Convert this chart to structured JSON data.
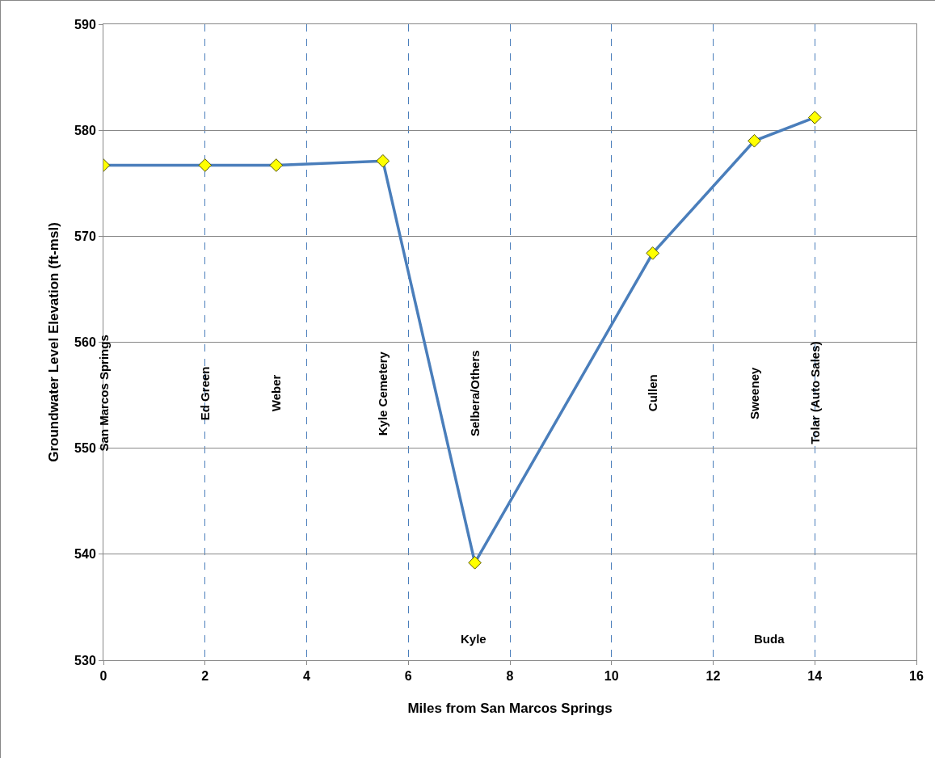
{
  "chart_data": {
    "type": "line",
    "xlabel": "Miles from San Marcos Springs",
    "ylabel": "Groundwater Level Elevation (ft-msl)",
    "x": [
      0,
      2.0,
      3.4,
      5.5,
      7.31,
      10.81,
      12.81,
      14.0
    ],
    "series": [
      {
        "color": "#4a7ebb",
        "values": [
          576.7,
          576.7,
          576.7,
          577.1,
          539.2,
          568.4,
          579.0,
          581.2
        ]
      }
    ],
    "marker": "diamond",
    "line_style": "solid",
    "grid": true,
    "xlim": [
      0,
      16
    ],
    "xticks": [
      0,
      2,
      4,
      6,
      8,
      10,
      12,
      14,
      16
    ],
    "ylim": [
      530,
      590
    ],
    "yticks": [
      530,
      540,
      550,
      560,
      570,
      580,
      590
    ],
    "annotations": [
      "San Marcos Springs",
      "Ed Green",
      "Weber",
      "Kyle Cemetery",
      "Selbera/Others",
      "Cullen",
      "Sweeney",
      "Tolar (Auto Sales)",
      "Kyle",
      "Buda"
    ]
  }
}
